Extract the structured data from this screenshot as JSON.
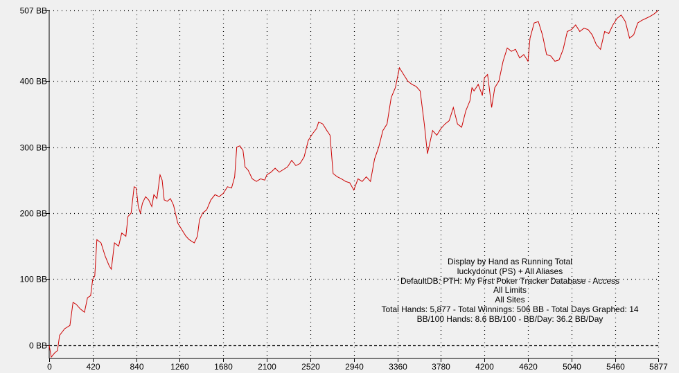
{
  "chart_data": {
    "type": "line",
    "title": "",
    "xlabel": "",
    "ylabel": "",
    "xlim": [
      0,
      5877
    ],
    "ylim": [
      -20,
      507
    ],
    "grid": true,
    "x_ticks": [
      0,
      420,
      840,
      1260,
      1680,
      2100,
      2520,
      2940,
      3360,
      3780,
      4200,
      4620,
      5040,
      5460,
      5877
    ],
    "y_ticks": [
      {
        "value": 507,
        "label": "507 BB"
      },
      {
        "value": 400,
        "label": "400 BB"
      },
      {
        "value": 300,
        "label": "300 BB"
      },
      {
        "value": 200,
        "label": "200 BB"
      },
      {
        "value": 100,
        "label": "100 BB"
      },
      {
        "value": 0,
        "label": "0 BB"
      }
    ],
    "line_color": "#cc0000",
    "series": [
      {
        "points": [
          [
            0,
            0
          ],
          [
            20,
            -18
          ],
          [
            50,
            -12
          ],
          [
            80,
            -8
          ],
          [
            100,
            15
          ],
          [
            150,
            25
          ],
          [
            200,
            30
          ],
          [
            230,
            65
          ],
          [
            260,
            62
          ],
          [
            300,
            55
          ],
          [
            340,
            50
          ],
          [
            370,
            72
          ],
          [
            400,
            75
          ],
          [
            420,
            100
          ],
          [
            440,
            105
          ],
          [
            460,
            160
          ],
          [
            500,
            155
          ],
          [
            540,
            135
          ],
          [
            580,
            120
          ],
          [
            600,
            115
          ],
          [
            630,
            155
          ],
          [
            670,
            150
          ],
          [
            700,
            170
          ],
          [
            740,
            165
          ],
          [
            760,
            195
          ],
          [
            790,
            200
          ],
          [
            820,
            240
          ],
          [
            840,
            238
          ],
          [
            860,
            210
          ],
          [
            880,
            200
          ],
          [
            900,
            215
          ],
          [
            930,
            225
          ],
          [
            960,
            220
          ],
          [
            990,
            210
          ],
          [
            1010,
            228
          ],
          [
            1040,
            222
          ],
          [
            1070,
            258
          ],
          [
            1090,
            250
          ],
          [
            1110,
            220
          ],
          [
            1140,
            218
          ],
          [
            1170,
            222
          ],
          [
            1200,
            212
          ],
          [
            1240,
            185
          ],
          [
            1280,
            175
          ],
          [
            1320,
            165
          ],
          [
            1350,
            160
          ],
          [
            1400,
            155
          ],
          [
            1430,
            165
          ],
          [
            1450,
            190
          ],
          [
            1480,
            200
          ],
          [
            1520,
            205
          ],
          [
            1560,
            220
          ],
          [
            1600,
            228
          ],
          [
            1640,
            225
          ],
          [
            1680,
            230
          ],
          [
            1720,
            240
          ],
          [
            1760,
            238
          ],
          [
            1790,
            255
          ],
          [
            1810,
            300
          ],
          [
            1840,
            302
          ],
          [
            1870,
            295
          ],
          [
            1890,
            270
          ],
          [
            1920,
            265
          ],
          [
            1960,
            252
          ],
          [
            2000,
            248
          ],
          [
            2040,
            252
          ],
          [
            2080,
            250
          ],
          [
            2100,
            258
          ],
          [
            2140,
            262
          ],
          [
            2180,
            268
          ],
          [
            2220,
            262
          ],
          [
            2260,
            266
          ],
          [
            2300,
            270
          ],
          [
            2340,
            280
          ],
          [
            2380,
            272
          ],
          [
            2420,
            275
          ],
          [
            2460,
            285
          ],
          [
            2500,
            310
          ],
          [
            2540,
            320
          ],
          [
            2580,
            328
          ],
          [
            2600,
            338
          ],
          [
            2640,
            335
          ],
          [
            2680,
            325
          ],
          [
            2710,
            318
          ],
          [
            2740,
            260
          ],
          [
            2780,
            255
          ],
          [
            2820,
            252
          ],
          [
            2860,
            248
          ],
          [
            2900,
            246
          ],
          [
            2940,
            235
          ],
          [
            2980,
            252
          ],
          [
            3020,
            248
          ],
          [
            3060,
            255
          ],
          [
            3100,
            248
          ],
          [
            3140,
            282
          ],
          [
            3180,
            300
          ],
          [
            3220,
            325
          ],
          [
            3260,
            335
          ],
          [
            3300,
            375
          ],
          [
            3340,
            390
          ],
          [
            3380,
            420
          ],
          [
            3420,
            410
          ],
          [
            3460,
            400
          ],
          [
            3500,
            395
          ],
          [
            3540,
            392
          ],
          [
            3580,
            385
          ],
          [
            3620,
            335
          ],
          [
            3650,
            290
          ],
          [
            3700,
            325
          ],
          [
            3740,
            318
          ],
          [
            3780,
            328
          ],
          [
            3820,
            335
          ],
          [
            3860,
            340
          ],
          [
            3900,
            360
          ],
          [
            3940,
            335
          ],
          [
            3980,
            330
          ],
          [
            4020,
            355
          ],
          [
            4060,
            370
          ],
          [
            4080,
            390
          ],
          [
            4100,
            385
          ],
          [
            4140,
            395
          ],
          [
            4180,
            378
          ],
          [
            4200,
            405
          ],
          [
            4230,
            410
          ],
          [
            4250,
            385
          ],
          [
            4270,
            360
          ],
          [
            4300,
            390
          ],
          [
            4340,
            400
          ],
          [
            4380,
            430
          ],
          [
            4420,
            450
          ],
          [
            4460,
            445
          ],
          [
            4500,
            448
          ],
          [
            4540,
            435
          ],
          [
            4580,
            440
          ],
          [
            4620,
            430
          ],
          [
            4640,
            465
          ],
          [
            4680,
            488
          ],
          [
            4720,
            490
          ],
          [
            4760,
            470
          ],
          [
            4800,
            440
          ],
          [
            4840,
            438
          ],
          [
            4880,
            430
          ],
          [
            4920,
            432
          ],
          [
            4960,
            448
          ],
          [
            5000,
            475
          ],
          [
            5040,
            478
          ],
          [
            5080,
            485
          ],
          [
            5120,
            475
          ],
          [
            5160,
            480
          ],
          [
            5200,
            478
          ],
          [
            5240,
            470
          ],
          [
            5280,
            455
          ],
          [
            5320,
            448
          ],
          [
            5360,
            475
          ],
          [
            5400,
            472
          ],
          [
            5440,
            485
          ],
          [
            5480,
            495
          ],
          [
            5520,
            500
          ],
          [
            5560,
            490
          ],
          [
            5600,
            465
          ],
          [
            5640,
            470
          ],
          [
            5680,
            488
          ],
          [
            5720,
            492
          ],
          [
            5760,
            495
          ],
          [
            5800,
            498
          ],
          [
            5840,
            502
          ],
          [
            5877,
            507
          ]
        ]
      }
    ]
  },
  "info": {
    "lines": [
      "Display by Hand as Running Total",
      "luckydonut (PS) + All Aliases",
      "DefaultDB: PTH: My First Poker Tracker Database - Access",
      "All Limits",
      "All Sites",
      "Total Hands: 5,877 - Total Winnings: 506 BB - Total Days Graphed: 14",
      "BB/100 Hands: 8.6 BB/100 - BB/Day: 36.2 BB/Day"
    ]
  }
}
